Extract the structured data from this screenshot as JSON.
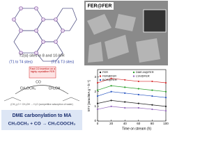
{
  "structure": {
    "title": "T2(α) sites in 8 and 10-MR",
    "left_label": "(T1 to T4 sites)",
    "right_label": "(T2 & T3 sites)"
  },
  "sem": {
    "label": "FER@FER"
  },
  "scheme": {
    "note": "Fast CO insertion on a highly crystalline FER",
    "reactant": "CH₃OCH₃",
    "byproduct": "CH₃OH",
    "co": "CO",
    "side_note": "(CH₃)₂O + CH₃OH → H₂O (competitive adsorption of water)",
    "caption": "DME carbonylation to MA",
    "equation": "CH₃OCH₃ + CO → CH₃COOCH₃"
  },
  "chart_data": {
    "type": "line",
    "xlabel": "Time on stream (h)",
    "ylabel": "STY [mmolMA g⁻¹ h⁻¹]",
    "x": [
      0,
      20,
      40,
      60,
      80,
      100
    ],
    "xlim": [
      0,
      100
    ],
    "xticks": [
      0,
      20,
      40,
      60,
      80,
      100
    ],
    "ylim": [
      0,
      3.5
    ],
    "yticks": [
      0,
      1,
      2,
      3
    ],
    "series": [
      {
        "name": "FER",
        "color": "#222222",
        "values": [
          1.2,
          1.4,
          1.3,
          1.2,
          1.1,
          1.0
        ]
      },
      {
        "name": "FER@FER",
        "color": "#d62728",
        "values": [
          2.6,
          2.9,
          2.8,
          2.7,
          2.7,
          2.6
        ]
      },
      {
        "name": "BOR@FER",
        "color": "#1f4fbf",
        "values": [
          1.7,
          2.0,
          1.9,
          1.8,
          1.7,
          1.6
        ]
      },
      {
        "name": "DME-M@FER",
        "color": "#2ca02c",
        "values": [
          2.1,
          2.4,
          2.3,
          2.2,
          2.1,
          2.0
        ]
      },
      {
        "name": "LSV@FER",
        "color": "#9467bd",
        "values": [
          0.8,
          1.0,
          0.9,
          0.9,
          0.8,
          0.7
        ]
      }
    ]
  }
}
